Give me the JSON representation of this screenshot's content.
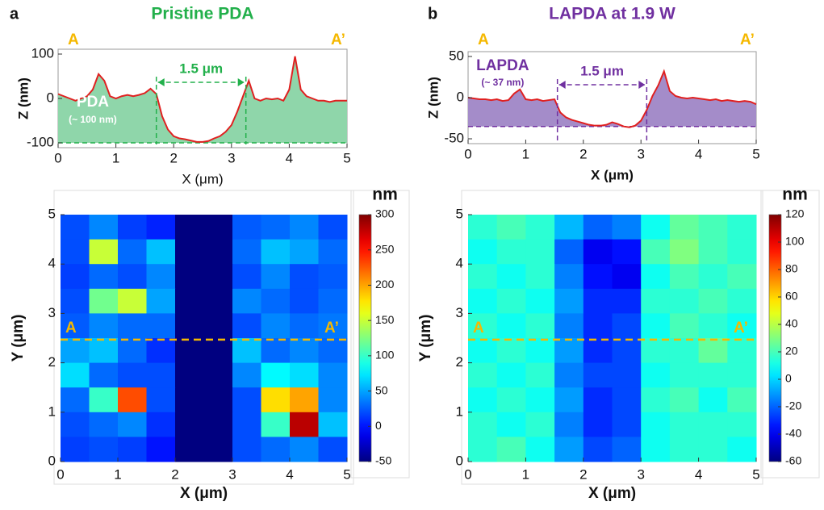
{
  "chart_data": [
    {
      "type": "area",
      "panel": "a",
      "title": "Pristine PDA",
      "title_color": "#22b04b",
      "xlabel": "X (μm)",
      "ylabel": "Z (nm)",
      "start_label": "A",
      "end_label": "A’",
      "span_label": "1.5 μm",
      "layer_label": "PDA",
      "thickness_label": "(~ 100 nm)",
      "line_color": "#e02020",
      "fill_color": "#8fd6aa",
      "marker_color": "#22b04b",
      "baseline": -100,
      "markers": [
        1.7,
        3.25
      ],
      "xlim": [
        0,
        5
      ],
      "ylim": [
        -100,
        100
      ],
      "xticks": [
        0,
        1,
        2,
        3,
        4,
        5
      ],
      "yticks": [
        -100,
        0,
        100
      ],
      "x": [
        0,
        0.1,
        0.2,
        0.3,
        0.4,
        0.5,
        0.6,
        0.7,
        0.8,
        0.9,
        1,
        1.1,
        1.2,
        1.3,
        1.4,
        1.5,
        1.6,
        1.7,
        1.8,
        1.9,
        2,
        2.1,
        2.2,
        2.3,
        2.4,
        2.5,
        2.6,
        2.7,
        2.8,
        2.9,
        3,
        3.1,
        3.2,
        3.3,
        3.4,
        3.5,
        3.6,
        3.7,
        3.8,
        3.9,
        4,
        4.1,
        4.2,
        4.3,
        4.4,
        4.5,
        4.6,
        4.7,
        4.8,
        4.9,
        5
      ],
      "values": [
        10,
        5,
        0,
        -5,
        0,
        5,
        20,
        55,
        40,
        5,
        0,
        5,
        8,
        5,
        8,
        12,
        22,
        10,
        -40,
        -70,
        -85,
        -90,
        -92,
        -95,
        -98,
        -98,
        -96,
        -90,
        -85,
        -75,
        -60,
        -30,
        5,
        40,
        0,
        -5,
        0,
        -2,
        0,
        -5,
        20,
        95,
        20,
        5,
        0,
        -5,
        -5,
        -8,
        -5,
        -5,
        -5
      ]
    },
    {
      "type": "area",
      "panel": "b",
      "title": "LAPDA at 1.9 W",
      "title_color": "#7030a0",
      "xlabel": "X (μm)",
      "ylabel": "Z (nm)",
      "start_label": "A",
      "end_label": "A’",
      "span_label": "1.5 μm",
      "layer_label": "LAPDA",
      "thickness_label": "(~ 37 nm)",
      "line_color": "#e02020",
      "fill_color": "#a48cc9",
      "marker_color": "#7030a0",
      "baseline": -35,
      "markers": [
        1.55,
        3.1
      ],
      "xlim": [
        0,
        5
      ],
      "ylim": [
        -50,
        50
      ],
      "xticks": [
        0,
        1,
        2,
        3,
        4,
        5
      ],
      "yticks": [
        -50,
        0,
        50
      ],
      "x": [
        0,
        0.1,
        0.2,
        0.3,
        0.4,
        0.5,
        0.6,
        0.7,
        0.8,
        0.9,
        1,
        1.1,
        1.2,
        1.3,
        1.4,
        1.5,
        1.6,
        1.7,
        1.8,
        1.9,
        2,
        2.1,
        2.2,
        2.3,
        2.4,
        2.5,
        2.6,
        2.7,
        2.8,
        2.9,
        3,
        3.1,
        3.2,
        3.3,
        3.4,
        3.5,
        3.6,
        3.7,
        3.8,
        3.9,
        4,
        4.1,
        4.2,
        4.3,
        4.4,
        4.5,
        4.6,
        4.7,
        4.8,
        4.9,
        5
      ],
      "values": [
        0,
        -1,
        -2,
        -2,
        -3,
        -2,
        -4,
        -3,
        5,
        10,
        -2,
        -3,
        -2,
        -4,
        -3,
        -2,
        -18,
        -24,
        -27,
        -29,
        -31,
        -33,
        -34,
        -34,
        -33,
        -30,
        -32,
        -35,
        -36,
        -34,
        -28,
        -15,
        2,
        15,
        32,
        8,
        2,
        0,
        -1,
        0,
        -1,
        -2,
        -3,
        -2,
        -4,
        -3,
        -4,
        -5,
        -4,
        -5,
        -8
      ]
    },
    {
      "type": "heatmap",
      "xlabel": "X (μm)",
      "ylabel": "Y (μm)",
      "colorbar_label": "nm",
      "start_label": "A",
      "end_label": "A’",
      "line_y": 2.47,
      "xlim": [
        0,
        5
      ],
      "ylim": [
        0,
        5
      ],
      "xticks": [
        0,
        1,
        2,
        3,
        4,
        5
      ],
      "yticks": [
        0,
        1,
        2,
        3,
        4,
        5
      ],
      "clim": [
        -50,
        300
      ],
      "cticks": [
        -50,
        0,
        50,
        100,
        150,
        200,
        250,
        300
      ],
      "z": [
        [
          20,
          40,
          15,
          5,
          -50,
          -50,
          25,
          30,
          40,
          20
        ],
        [
          20,
          150,
          30,
          60,
          -50,
          -50,
          30,
          60,
          50,
          30
        ],
        [
          15,
          30,
          20,
          40,
          -50,
          -50,
          20,
          40,
          20,
          25
        ],
        [
          20,
          120,
          150,
          50,
          -50,
          -50,
          40,
          30,
          20,
          30
        ],
        [
          25,
          40,
          30,
          30,
          -50,
          -50,
          20,
          40,
          30,
          35
        ],
        [
          50,
          60,
          30,
          10,
          -50,
          -50,
          60,
          30,
          40,
          30
        ],
        [
          70,
          30,
          20,
          20,
          -50,
          -50,
          40,
          80,
          70,
          40
        ],
        [
          30,
          100,
          230,
          20,
          -50,
          -50,
          20,
          180,
          200,
          40
        ],
        [
          20,
          30,
          40,
          10,
          -50,
          -50,
          20,
          100,
          280,
          60
        ],
        [
          15,
          20,
          15,
          0,
          -50,
          -50,
          20,
          30,
          40,
          20
        ]
      ]
    },
    {
      "type": "heatmap",
      "xlabel": "X (μm)",
      "ylabel": "Y (μm)",
      "colorbar_label": "nm",
      "start_label": "A",
      "end_label": "A’",
      "line_y": 2.47,
      "xlim": [
        0,
        5
      ],
      "ylim": [
        0,
        5
      ],
      "xticks": [
        0,
        1,
        2,
        3,
        4,
        5
      ],
      "yticks": [
        0,
        1,
        2,
        3,
        4,
        5
      ],
      "clim": [
        -60,
        120
      ],
      "cticks": [
        -60,
        -40,
        -20,
        0,
        20,
        40,
        60,
        80,
        100,
        120
      ],
      "z": [
        [
          15,
          20,
          15,
          -5,
          -20,
          -15,
          10,
          25,
          20,
          15
        ],
        [
          10,
          15,
          15,
          -20,
          -40,
          -35,
          20,
          30,
          20,
          15
        ],
        [
          15,
          10,
          15,
          -15,
          -35,
          -40,
          10,
          20,
          15,
          20
        ],
        [
          10,
          15,
          10,
          -10,
          -30,
          -30,
          15,
          15,
          20,
          15
        ],
        [
          15,
          10,
          15,
          -15,
          -30,
          -25,
          10,
          20,
          15,
          10
        ],
        [
          10,
          15,
          10,
          -10,
          -30,
          -25,
          15,
          15,
          25,
          15
        ],
        [
          15,
          10,
          15,
          -15,
          -25,
          -25,
          10,
          15,
          15,
          15
        ],
        [
          10,
          15,
          10,
          -10,
          -30,
          -25,
          15,
          20,
          10,
          20
        ],
        [
          15,
          10,
          15,
          -15,
          -30,
          -25,
          10,
          15,
          15,
          15
        ],
        [
          15,
          20,
          10,
          -10,
          -25,
          -20,
          10,
          15,
          15,
          10
        ]
      ]
    }
  ]
}
